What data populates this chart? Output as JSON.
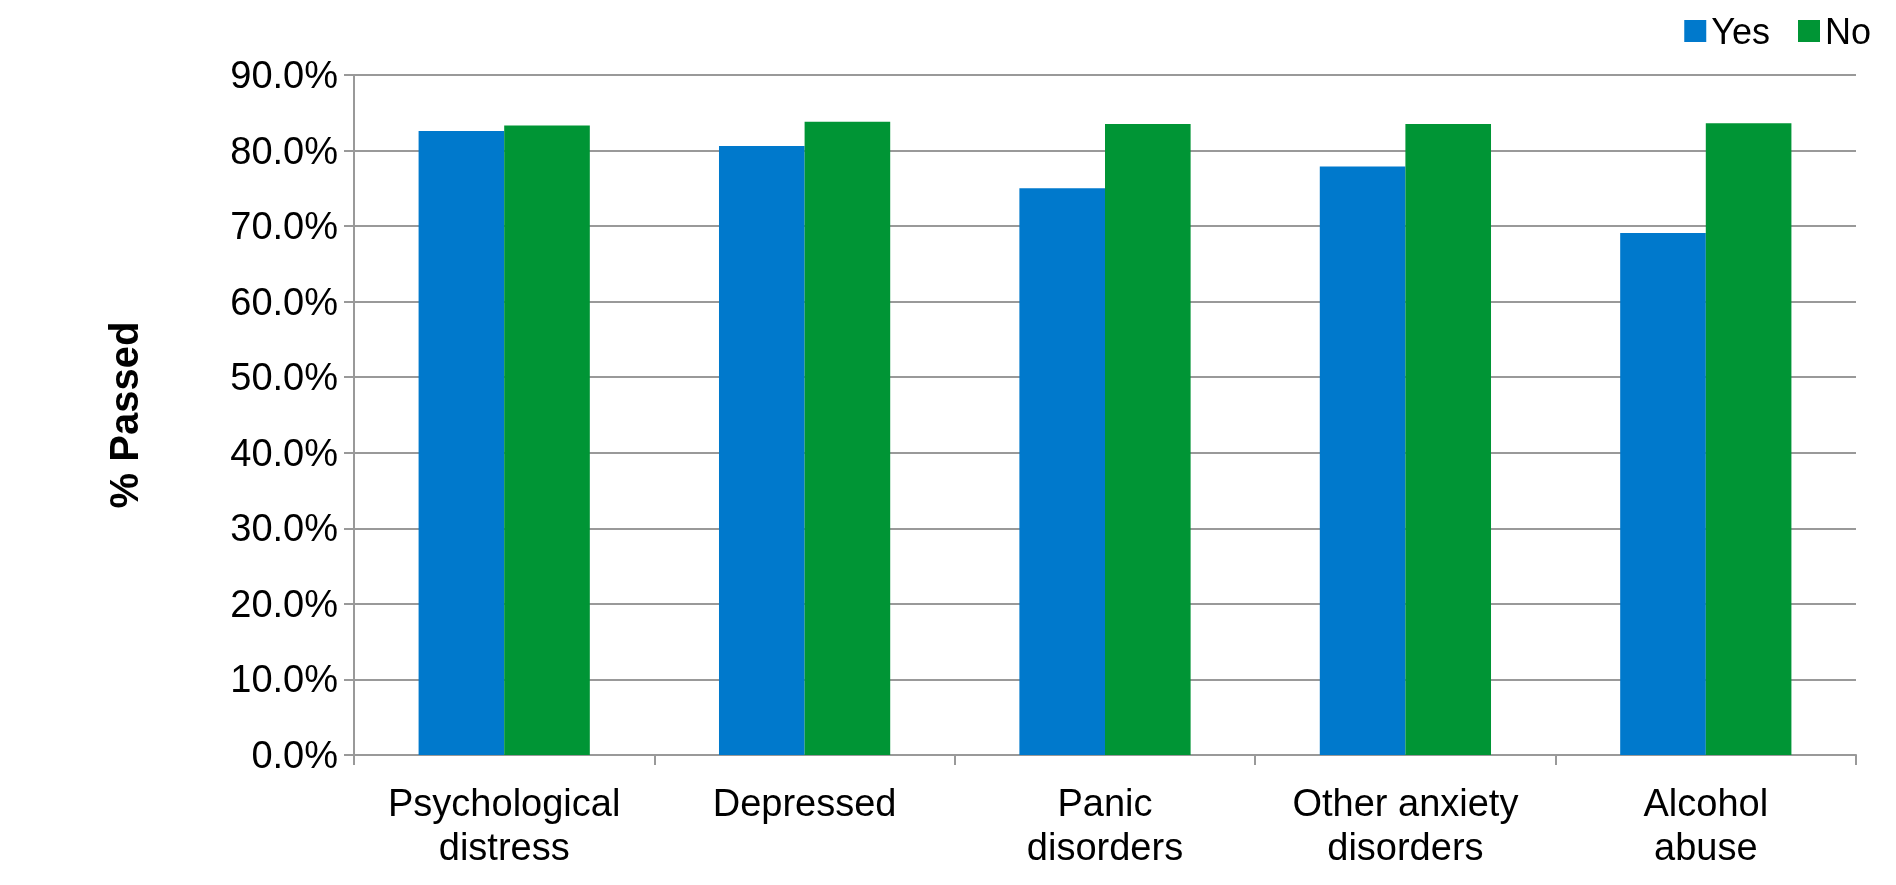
{
  "chart_data": {
    "type": "bar",
    "ylabel": "% Passed",
    "categories": [
      "Psychological distress",
      "Depressed",
      "Panic disorders",
      "Other anxiety disorders",
      "Alcohol abuse"
    ],
    "series": [
      {
        "name": "Yes",
        "color": "#0079cc",
        "values": [
          82.6,
          80.6,
          75.0,
          77.9,
          69.1
        ]
      },
      {
        "name": "No",
        "color": "#009535",
        "values": [
          83.3,
          83.8,
          83.5,
          83.5,
          83.6
        ]
      }
    ],
    "ylim": [
      0,
      90
    ],
    "yticks": [
      {
        "value": 0,
        "label": "0.0%"
      },
      {
        "value": 10,
        "label": "10.0%"
      },
      {
        "value": 20,
        "label": "20.0%"
      },
      {
        "value": 30,
        "label": "30.0%"
      },
      {
        "value": 40,
        "label": "40.0%"
      },
      {
        "value": 50,
        "label": "50.0%"
      },
      {
        "value": 60,
        "label": "60.0%"
      },
      {
        "value": 70,
        "label": "70.0%"
      },
      {
        "value": 80,
        "label": "80.0%"
      },
      {
        "value": 90,
        "label": "90.0%"
      }
    ],
    "grid": "y",
    "legend": "top right"
  }
}
